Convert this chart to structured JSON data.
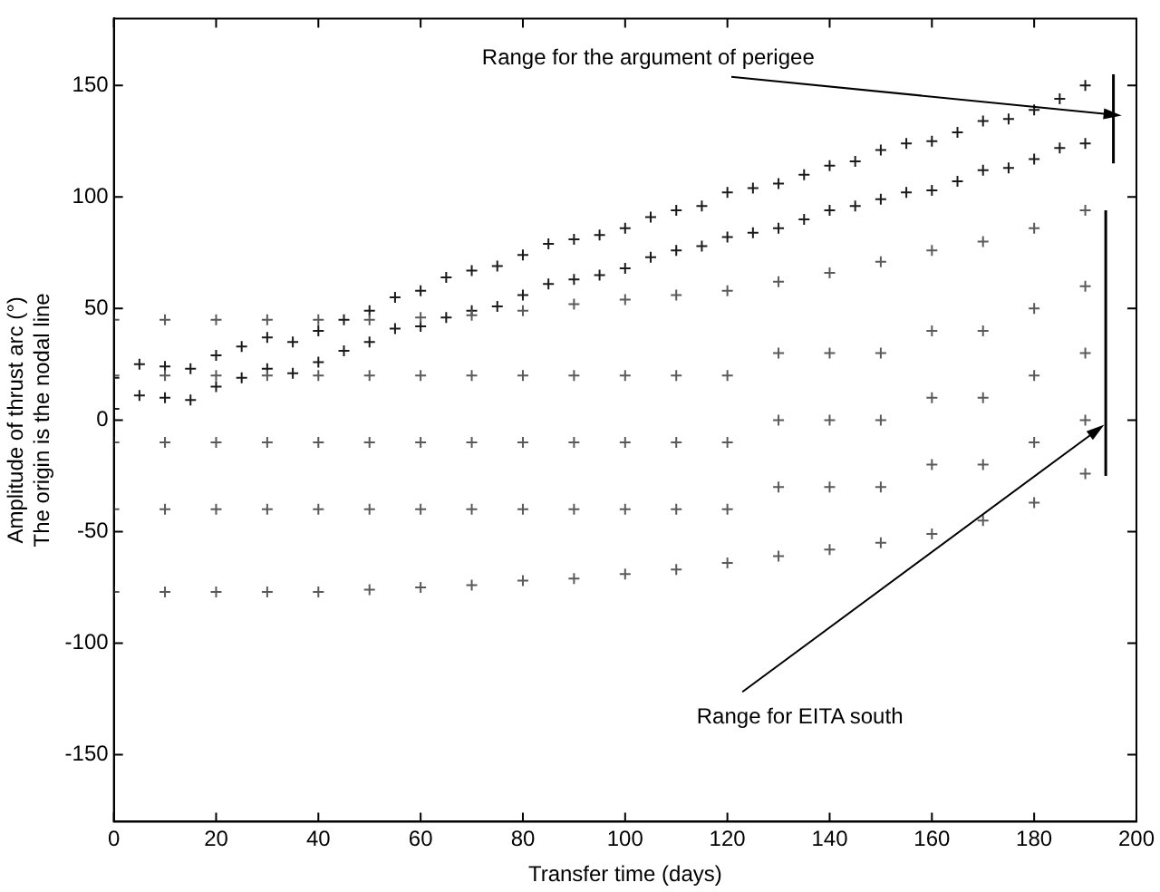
{
  "chart_data": {
    "type": "scatter",
    "xlabel": "Transfer time (days)",
    "ylabel": "Amplitude of thrust arc (°)\nThe origin is the nodal line",
    "xlim": [
      0,
      200
    ],
    "xticks": [
      0,
      20,
      40,
      60,
      80,
      100,
      120,
      140,
      160,
      180,
      200
    ],
    "ylim": [
      -180,
      180
    ],
    "yticks": [
      -150,
      -100,
      -50,
      0,
      50,
      100,
      150
    ],
    "grid": false,
    "legend": false,
    "marker": "cross",
    "annotations": [
      {
        "text": "Range for the argument of perigee",
        "x": 195,
        "y": 137
      },
      {
        "text": "Range for EITA south",
        "x": 192,
        "y": -5
      }
    ],
    "series": [
      {
        "type": "line",
        "marker": "none",
        "color": "#000000",
        "x": [
          195.5,
          195.5
        ],
        "values": [
          115,
          155
        ]
      },
      {
        "type": "line",
        "marker": "none",
        "color": "#000000",
        "x": [
          194,
          194
        ],
        "values": [
          -25,
          94
        ]
      },
      {
        "color": "#5a5a5a",
        "x": [
          0,
          0,
          0,
          0,
          0,
          10,
          10,
          10,
          10,
          10,
          20,
          20,
          20,
          20,
          20,
          30,
          30,
          30,
          30,
          30,
          40,
          40,
          40,
          40,
          40,
          50,
          50,
          50,
          50,
          50,
          60,
          60,
          60,
          60,
          60,
          70,
          70,
          70,
          70,
          70,
          80,
          80,
          80,
          80,
          80,
          90,
          90,
          90,
          90,
          90,
          100,
          100,
          100,
          100,
          100,
          110,
          110,
          110,
          110,
          110,
          120,
          120,
          120,
          120,
          120,
          130,
          130,
          130,
          130,
          130,
          140,
          140,
          140,
          140,
          140,
          150,
          150,
          150,
          150,
          150,
          160,
          160,
          160,
          160,
          160,
          170,
          170,
          170,
          170,
          170,
          180,
          180,
          180,
          180,
          180,
          190,
          190,
          190,
          190,
          190
        ],
        "values": [
          45,
          20,
          -10,
          -40,
          -77,
          45,
          20,
          -10,
          -40,
          -77,
          45,
          20,
          -10,
          -40,
          -77,
          45,
          20,
          -10,
          -40,
          -77,
          45,
          20,
          -10,
          -40,
          -77,
          45,
          20,
          -10,
          -40,
          -76,
          46,
          20,
          -10,
          -40,
          -75,
          47,
          20,
          -10,
          -40,
          -74,
          49,
          20,
          -10,
          -40,
          -72,
          52,
          20,
          -10,
          -40,
          -71,
          54,
          20,
          -10,
          -40,
          -69,
          56,
          20,
          -10,
          -40,
          -67,
          58,
          20,
          -10,
          -40,
          -64,
          62,
          30,
          0,
          -30,
          -61,
          66,
          30,
          0,
          -30,
          -58,
          71,
          30,
          0,
          -30,
          -55,
          76,
          40,
          10,
          -20,
          -51,
          80,
          40,
          10,
          -20,
          -45,
          86,
          50,
          20,
          -10,
          -37,
          94,
          60,
          30,
          0,
          -24
        ]
      },
      {
        "color": "#1a1a1a",
        "x": [
          0,
          5,
          10,
          15,
          20,
          25,
          30,
          35,
          40,
          45,
          50,
          55,
          60,
          65,
          70,
          75,
          80,
          85,
          90,
          95,
          100,
          105,
          110,
          115,
          120,
          125,
          130,
          135,
          140,
          145,
          150,
          155,
          160,
          165,
          170,
          175,
          180,
          185,
          190,
          0,
          5,
          10,
          15,
          20,
          25,
          30,
          35,
          40,
          45,
          50,
          55,
          60,
          65,
          70,
          75,
          80,
          85,
          90,
          95,
          100,
          105,
          110,
          115,
          120,
          125,
          130,
          135,
          140,
          145,
          150,
          155,
          160,
          165,
          170,
          175,
          180,
          185,
          190
        ],
        "values": [
          19,
          25,
          24,
          23,
          29,
          33,
          37,
          35,
          40,
          45,
          49,
          55,
          58,
          64,
          67,
          69,
          74,
          79,
          81,
          83,
          86,
          91,
          94,
          96,
          102,
          104,
          106,
          110,
          114,
          116,
          121,
          124,
          125,
          129,
          134,
          135,
          139,
          144,
          150,
          5,
          11,
          10,
          9,
          15,
          19,
          23,
          21,
          26,
          31,
          35,
          41,
          42,
          46,
          49,
          51,
          56,
          61,
          63,
          65,
          68,
          73,
          76,
          78,
          82,
          84,
          86,
          90,
          94,
          96,
          99,
          102,
          103,
          107,
          112,
          113,
          117,
          122,
          124
        ]
      }
    ]
  }
}
